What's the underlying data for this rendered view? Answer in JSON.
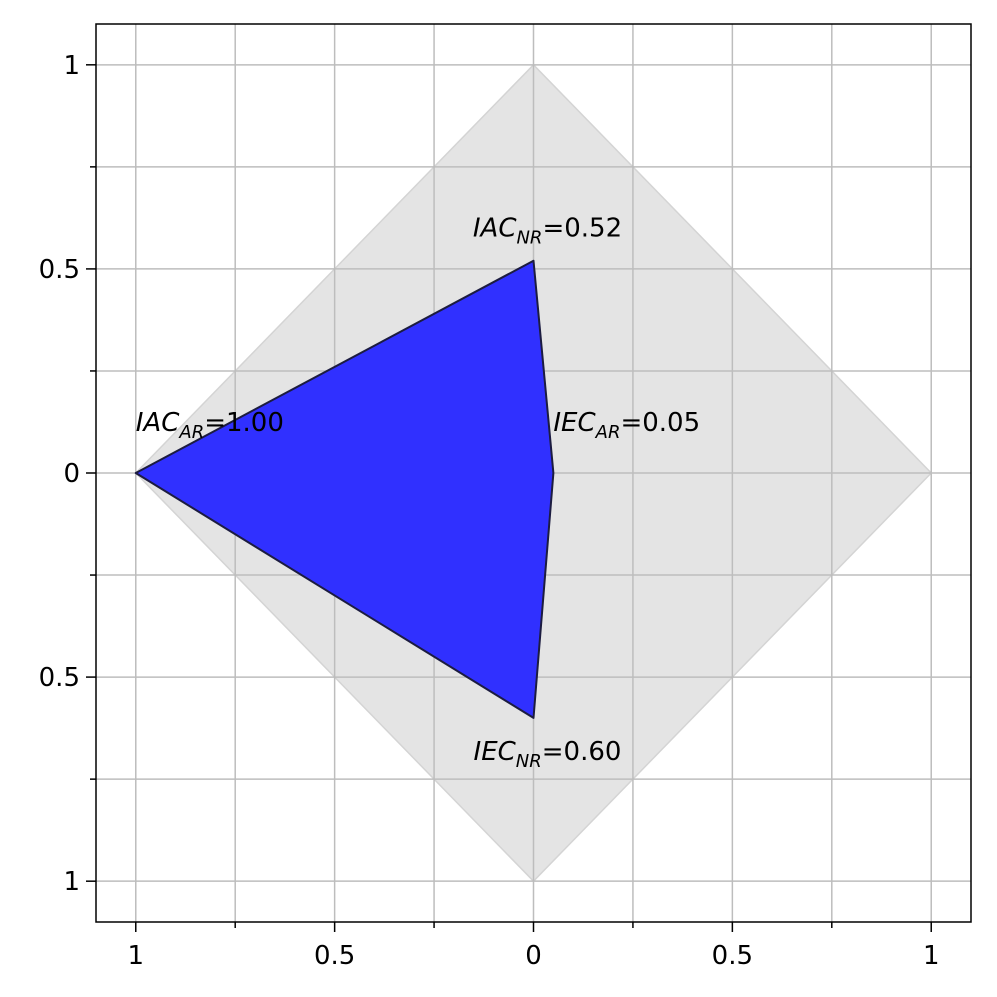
{
  "chart_data": {
    "type": "diamond-radar",
    "labels": [
      [
        "IAC",
        "AR"
      ],
      [
        "IAC",
        "NR"
      ],
      [
        "IEC",
        "AR"
      ],
      [
        "IEC",
        "NR"
      ]
    ],
    "directions": [
      "left",
      "up",
      "right",
      "down"
    ],
    "values": [
      1,
      0.52,
      0.05,
      0.6
    ],
    "value_labels": [
      "=1.00",
      "=0.52",
      "=0.05",
      "=0.60"
    ],
    "rlim": [
      0,
      1
    ],
    "background_color": "#e4e4e4",
    "fill_color": "#3030ff",
    "edge_color": "#1c1c40",
    "xlim": [
      -1.1,
      1.1
    ],
    "ylim": [
      -1.1,
      1.1
    ],
    "xticks": [
      {
        "value": -1,
        "label": "1"
      },
      {
        "value": -0.5,
        "label": "0.5"
      },
      0,
      0.5,
      1
    ],
    "yticks": [
      {
        "value": -1,
        "label": "1"
      },
      {
        "value": -0.5,
        "label": "0.5"
      },
      0,
      0.5,
      1
    ],
    "xminorticks": [
      -0.75,
      -0.25,
      0.25,
      0.75
    ],
    "yminorticks": [
      -0.75,
      -0.25,
      0.25,
      0.75
    ],
    "grid": true
  }
}
